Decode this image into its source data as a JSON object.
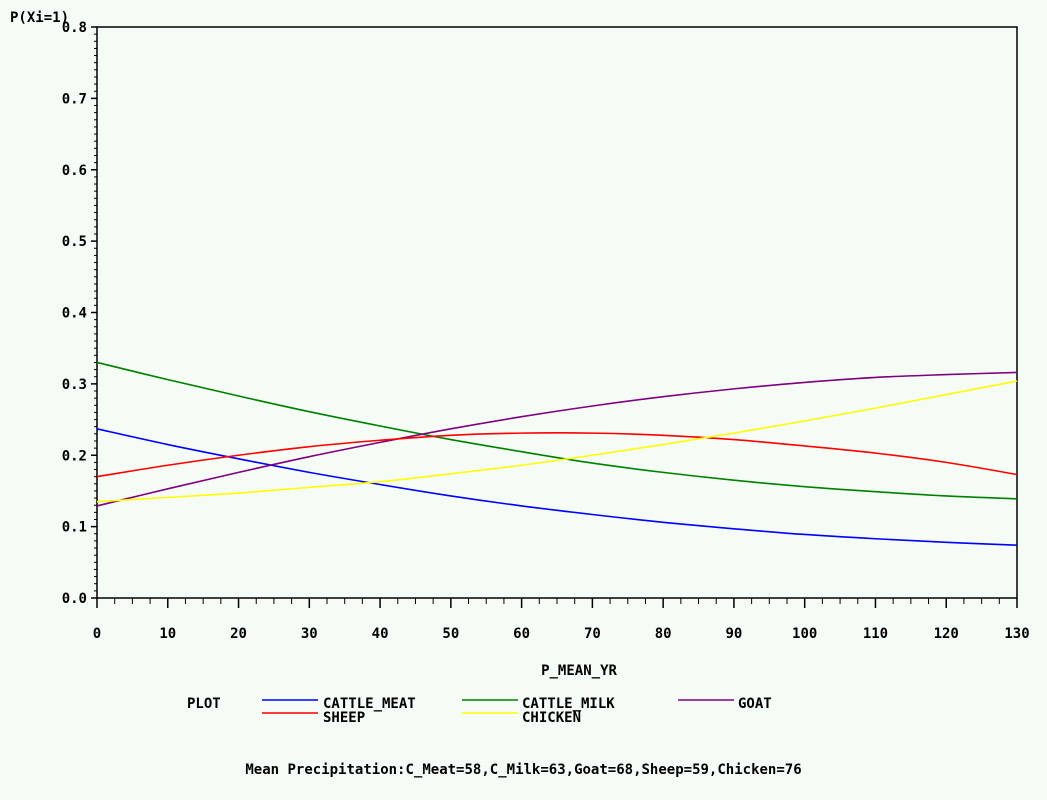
{
  "chart_data": {
    "type": "line",
    "title": "",
    "ylabel": "P(Xi=1)",
    "xlabel": "P_MEAN_YR",
    "xlim": [
      0,
      130
    ],
    "ylim": [
      0.0,
      0.8
    ],
    "x_ticks": [
      0,
      10,
      20,
      30,
      40,
      50,
      60,
      70,
      80,
      90,
      100,
      110,
      120,
      130
    ],
    "y_ticks": [
      0.0,
      0.1,
      0.2,
      0.3,
      0.4,
      0.5,
      0.6,
      0.7,
      0.8
    ],
    "x_tick_labels": [
      "0",
      "10",
      "20",
      "30",
      "40",
      "50",
      "60",
      "70",
      "80",
      "90",
      "100",
      "110",
      "120",
      "130"
    ],
    "y_tick_labels": [
      "0.0",
      "0.1",
      "0.2",
      "0.3",
      "0.4",
      "0.5",
      "0.6",
      "0.7",
      "0.8"
    ],
    "grid": false,
    "legend": {
      "title": "PLOT",
      "placement": "bottom"
    },
    "x": [
      0,
      10,
      20,
      30,
      40,
      50,
      60,
      70,
      80,
      90,
      100,
      110,
      120,
      130
    ],
    "series": [
      {
        "name": "CATTLE_MEAT",
        "color": "#0000ff",
        "values": [
          0.237,
          0.215,
          0.195,
          0.176,
          0.159,
          0.143,
          0.129,
          0.117,
          0.106,
          0.097,
          0.089,
          0.083,
          0.078,
          0.074
        ]
      },
      {
        "name": "CATTLE_MILK",
        "color": "#008000",
        "values": [
          0.33,
          0.306,
          0.283,
          0.261,
          0.241,
          0.222,
          0.205,
          0.189,
          0.176,
          0.165,
          0.156,
          0.149,
          0.143,
          0.139
        ]
      },
      {
        "name": "GOAT",
        "color": "#800080",
        "values": [
          0.129,
          0.153,
          0.176,
          0.198,
          0.218,
          0.237,
          0.254,
          0.269,
          0.282,
          0.293,
          0.302,
          0.309,
          0.313,
          0.316
        ]
      },
      {
        "name": "SHEEP",
        "color": "#ff0000",
        "values": [
          0.17,
          0.186,
          0.2,
          0.212,
          0.221,
          0.228,
          0.231,
          0.231,
          0.228,
          0.222,
          0.213,
          0.203,
          0.19,
          0.173
        ]
      },
      {
        "name": "CHICKEN",
        "color": "#ffff00",
        "values": [
          0.135,
          0.141,
          0.147,
          0.155,
          0.163,
          0.174,
          0.186,
          0.2,
          0.215,
          0.231,
          0.248,
          0.266,
          0.285,
          0.304
        ]
      }
    ]
  },
  "footer": {
    "note": "Mean Precipitation:C_Meat=58,C_Milk=63,Goat=68,Sheep=59,Chicken=76"
  }
}
